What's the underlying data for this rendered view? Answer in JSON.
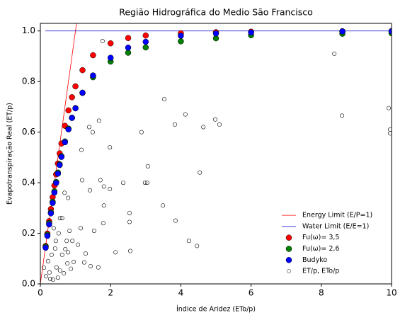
{
  "chart_data": {
    "type": "scatter",
    "title": "Região Hidrográfica do Medio São Francisco",
    "xlabel": "Índice de Aridez (ETo/p)",
    "ylabel": "Evapotranspiração Real (ET/p)",
    "xlim": [
      0,
      10
    ],
    "ylim": [
      0,
      1.03
    ],
    "xticks": [
      0,
      2,
      4,
      6,
      8,
      10
    ],
    "yticks": [
      {
        "value": 0,
        "label": "0.0"
      },
      0.2,
      0.4,
      0.6,
      0.8,
      {
        "value": 1,
        "label": "1.0"
      }
    ],
    "legend": "lower right",
    "series": [
      {
        "name": "Energy Limit (E/P=1)",
        "style": "line",
        "color": "#ff0000",
        "x": [
          0,
          1.03
        ],
        "values": [
          0,
          1.03
        ]
      },
      {
        "name": "Water Limit (E/E=1)",
        "style": "line",
        "color": "#0000cc",
        "x": [
          0.14,
          10
        ],
        "values": [
          1,
          1
        ]
      },
      {
        "name": "Fu(ω)= 3,5",
        "style": "filled",
        "color": "#ff0000",
        "x": [
          0.15,
          0.2,
          0.25,
          0.3,
          0.35,
          0.4,
          0.45,
          0.5,
          0.55,
          0.6,
          0.7,
          0.8,
          0.9,
          1.0,
          1.2,
          1.5,
          2.0,
          2.5,
          3.0,
          4.0,
          5.0,
          6.0,
          8.6,
          10
        ],
        "values": [
          0.15,
          0.199,
          0.248,
          0.296,
          0.343,
          0.389,
          0.433,
          0.476,
          0.516,
          0.555,
          0.625,
          0.686,
          0.738,
          0.781,
          0.845,
          0.904,
          0.951,
          0.972,
          0.982,
          0.991,
          0.995,
          0.997,
          0.999,
          0.9995
        ]
      },
      {
        "name": "Fu(ω)= 2,6",
        "style": "filled",
        "color": "#008000",
        "x": [
          0.15,
          0.2,
          0.25,
          0.3,
          0.35,
          0.4,
          0.45,
          0.5,
          0.55,
          0.6,
          0.7,
          0.8,
          0.9,
          1.0,
          1.2,
          1.5,
          2.0,
          2.5,
          3.0,
          4.0,
          5.0,
          6.0,
          8.6,
          10
        ],
        "values": [
          0.147,
          0.194,
          0.24,
          0.283,
          0.325,
          0.366,
          0.403,
          0.44,
          0.473,
          0.505,
          0.563,
          0.614,
          0.657,
          0.695,
          0.755,
          0.817,
          0.879,
          0.914,
          0.935,
          0.959,
          0.971,
          0.983,
          0.989,
          0.991
        ]
      },
      {
        "name": "Budyko",
        "style": "filled",
        "color": "#0000ff",
        "x": [
          0.15,
          0.2,
          0.25,
          0.3,
          0.35,
          0.4,
          0.45,
          0.5,
          0.55,
          0.6,
          0.7,
          0.8,
          0.9,
          1.0,
          1.2,
          1.5,
          2.0,
          2.5,
          3.0,
          4.0,
          5.0,
          6.0,
          8.6,
          10
        ],
        "values": [
          0.143,
          0.19,
          0.235,
          0.279,
          0.32,
          0.361,
          0.399,
          0.436,
          0.47,
          0.502,
          0.56,
          0.611,
          0.656,
          0.694,
          0.756,
          0.824,
          0.894,
          0.934,
          0.957,
          0.981,
          0.99,
          0.994,
          0.998,
          0.9985
        ]
      },
      {
        "name": "ET/p, ETo/p",
        "style": "open",
        "color": "#000000",
        "x": [
          1.77,
          3.53,
          4.13,
          4.64,
          4.98,
          5.1,
          3.83,
          1.67,
          2.88,
          1.39,
          1.49,
          1.98,
          1.17,
          8.37,
          8.59,
          9.92,
          9.96,
          9.96,
          4.54,
          3.06,
          2.98,
          3.04,
          2.36,
          1.81,
          1.98,
          1.19,
          1.71,
          1.41,
          1.81,
          3.49,
          3.85,
          1.79,
          2.54,
          2.54,
          2.56,
          2.14,
          4.23,
          4.46,
          1.53,
          1.15,
          1.29,
          1.25,
          1.43,
          1.65,
          1.07,
          0.91,
          0.69,
          0.79,
          0.56,
          0.62,
          0.83,
          0.75,
          0.79,
          0.16,
          0.26,
          0.36,
          0.46,
          0.56,
          0.67,
          0.77,
          0.32,
          0.42,
          0.22,
          0.52,
          0.38,
          0.62,
          0.87,
          0.1,
          0.5,
          0.28,
          0.95,
          0.71,
          0.44
        ],
        "values": [
          0.96,
          0.73,
          0.67,
          0.62,
          0.65,
          0.63,
          0.63,
          0.645,
          0.6,
          0.62,
          0.6,
          0.54,
          0.53,
          0.91,
          0.665,
          0.695,
          0.61,
          0.595,
          0.44,
          0.465,
          0.4,
          0.4,
          0.4,
          0.385,
          0.375,
          0.41,
          0.41,
          0.37,
          0.31,
          0.31,
          0.25,
          0.24,
          0.28,
          0.245,
          0.13,
          0.125,
          0.17,
          0.15,
          0.21,
          0.22,
          0.12,
          0.085,
          0.07,
          0.065,
          0.155,
          0.17,
          0.36,
          0.34,
          0.26,
          0.26,
          0.21,
          0.17,
          0.125,
          0.03,
          0.045,
          0.017,
          0.065,
          0.053,
          0.042,
          0.081,
          0.115,
          0.14,
          0.09,
          0.2,
          0.22,
          0.115,
          0.06,
          0.064,
          0.025,
          0.02,
          0.087,
          0.137,
          0.17
        ]
      }
    ]
  }
}
